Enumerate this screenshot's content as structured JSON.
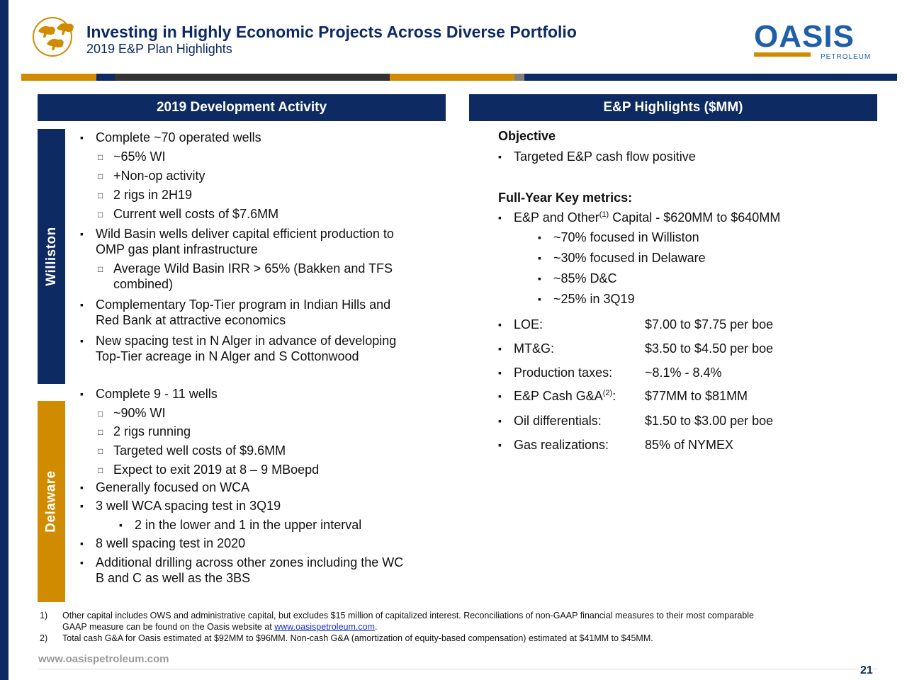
{
  "header": {
    "title": "Investing in Highly Economic Projects Across Diverse Portfolio",
    "subtitle": "2019 E&P Plan Highlights",
    "logo_text": "OASIS",
    "logo_subtext": "PETROLEUM"
  },
  "colors": {
    "navy": "#0d2a63",
    "gold": "#d18b00",
    "dark_gray": "#333333",
    "mid_gray": "#7f7f7f",
    "logo_blue": "#1f5fa8"
  },
  "left_panel": {
    "header": "2019 Development Activity",
    "williston_label": "Williston",
    "delaware_label": "Delaware",
    "williston_lines": [
      "Complete ~70 operated wells",
      "~65% WI",
      "+Non-op activity",
      "2 rigs in 2H19",
      "Current well costs of $7.6MM",
      "Wild Basin wells deliver capital efficient production to",
      "OMP gas plant infrastructure",
      "Average Wild Basin IRR > 65% (Bakken and TFS",
      "combined)",
      "Complementary Top-Tier program in Indian Hills and",
      "Red Bank at attractive economics",
      "New spacing test in N Alger in advance of developing",
      "Top-Tier acreage in N Alger and S Cottonwood"
    ],
    "delaware_lines": [
      "Complete 9 - 11 wells",
      "~90% WI",
      "2 rigs running",
      "Targeted well costs of $9.6MM",
      "Expect to exit 2019 at 8 – 9 MBoepd",
      "Generally focused on WCA",
      "3 well WCA spacing test in 3Q19",
      "2 in the lower and 1 in the upper interval",
      "8 well spacing test in 2020",
      "Additional drilling across other zones including the WC",
      "B and C as well as the 3BS"
    ]
  },
  "right_panel": {
    "header": "E&P Highlights ($MM)",
    "objective_title": "Objective",
    "objective_item": "Targeted E&P cash flow positive",
    "key_metrics_title": "Full-Year Key metrics:",
    "capital_pre": "E&P and Other",
    "capital_sup": "(1)",
    "capital_post": " Capital - $620MM to $640MM",
    "capital_sub": [
      "~70% focused in Williston",
      "~30% focused in Delaware",
      "~85% D&C",
      "~25% in 3Q19"
    ],
    "metrics": [
      {
        "label": "LOE:",
        "value": "$7.00 to $7.75 per boe"
      },
      {
        "label": "MT&G:",
        "value": "$3.50 to $4.50 per boe"
      },
      {
        "label": "Production taxes:",
        "value": "~8.1% - 8.4%"
      },
      {
        "label": "E&P Cash G&A",
        "sup": "(2)",
        "suffix": ":",
        "value": "$77MM to $81MM"
      },
      {
        "label": "Oil differentials:",
        "value": "$1.50 to $3.00 per boe"
      },
      {
        "label": "Gas realizations:",
        "value": "85% of NYMEX"
      }
    ]
  },
  "footnotes": {
    "fn1_num": "1)",
    "fn1_line1": "Other capital includes OWS and administrative capital, but excludes $15 million of capitalized interest. Reconciliations of non-GAAP financial measures to their most comparable",
    "fn1_line2_pre": "GAAP measure can be found on the Oasis website at ",
    "fn1_link": "www.oasispetroleum.com",
    "fn1_line2_post": ".",
    "fn2_num": "2)",
    "fn2_text": "Total cash G&A for Oasis estimated at $92MM to $96MM.  Non-cash G&A (amortization of equity-based compensation) estimated at $41MM to $45MM."
  },
  "footer": {
    "url": "www.oasispetroleum.com",
    "page_number": "21"
  }
}
